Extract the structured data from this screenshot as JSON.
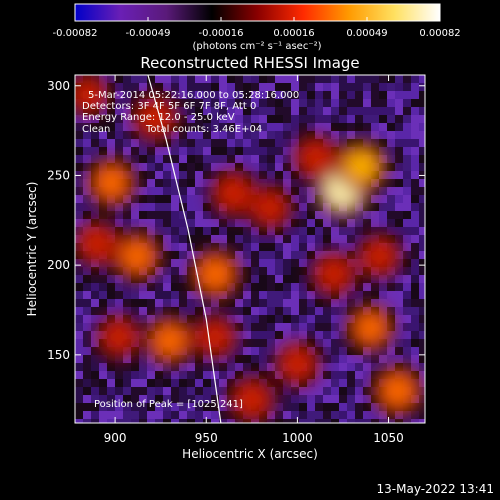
{
  "chart_data": {
    "type": "heatmap",
    "title": "Reconstructed RHESSI Image",
    "xlabel": "Heliocentric X (arcsec)",
    "ylabel": "Heliocentric Y (arcsec)",
    "xlim": [
      878,
      1070
    ],
    "ylim": [
      112,
      306
    ],
    "x_ticks": [
      "900",
      "950",
      "1000",
      "1050"
    ],
    "x_tick_values": [
      900,
      950,
      1000,
      1050
    ],
    "y_ticks": [
      "150",
      "200",
      "250",
      "300"
    ],
    "y_tick_values": [
      150,
      200,
      250,
      300
    ],
    "colorbar": {
      "range": [
        -0.00082,
        0.00082
      ],
      "tick_labels": [
        "-0.00082",
        "-0.00049",
        "-0.00016",
        "0.00016",
        "0.00049",
        "0.00082"
      ],
      "units_label": "(photons cm⁻² s⁻¹ asec⁻²)",
      "colors": [
        "#0000c8",
        "#6a1fb5",
        "#5a1a7a",
        "#000000",
        "#8a0000",
        "#ff2a00",
        "#ff9a00",
        "#ffe060",
        "#ffffff"
      ]
    },
    "annotations": {
      "time_range": "5-Mar-2014 05:22:16.000 to 05:28:16.000",
      "detectors": "Detectors: 3F 4F 5F 6F 7F 8F, Att 0",
      "energy_range": "Energy Range: 12.0 - 25.0 keV",
      "method": "Clean",
      "total_counts": "Total counts: 3.46E+04",
      "peak_position": "Position of Peak = [1025,241]"
    },
    "limb": [
      [
        918,
        306
      ],
      [
        928,
        270
      ],
      [
        940,
        220
      ],
      [
        950,
        170
      ],
      [
        958,
        112
      ]
    ],
    "hot_spots": [
      {
        "x": 1025,
        "y": 242,
        "intensity": 1.0
      },
      {
        "x": 1035,
        "y": 255,
        "intensity": 0.8
      },
      {
        "x": 1010,
        "y": 260,
        "intensity": 0.55
      },
      {
        "x": 898,
        "y": 246,
        "intensity": 0.7
      },
      {
        "x": 922,
        "y": 282,
        "intensity": 0.6
      },
      {
        "x": 890,
        "y": 212,
        "intensity": 0.55
      },
      {
        "x": 912,
        "y": 205,
        "intensity": 0.7
      },
      {
        "x": 955,
        "y": 195,
        "intensity": 0.75
      },
      {
        "x": 965,
        "y": 240,
        "intensity": 0.6
      },
      {
        "x": 985,
        "y": 232,
        "intensity": 0.5
      },
      {
        "x": 930,
        "y": 158,
        "intensity": 0.7
      },
      {
        "x": 902,
        "y": 160,
        "intensity": 0.5
      },
      {
        "x": 1020,
        "y": 195,
        "intensity": 0.55
      },
      {
        "x": 1045,
        "y": 205,
        "intensity": 0.5
      },
      {
        "x": 1040,
        "y": 165,
        "intensity": 0.65
      },
      {
        "x": 1055,
        "y": 130,
        "intensity": 0.75
      },
      {
        "x": 1000,
        "y": 145,
        "intensity": 0.55
      },
      {
        "x": 975,
        "y": 125,
        "intensity": 0.6
      },
      {
        "x": 955,
        "y": 160,
        "intensity": 0.5
      },
      {
        "x": 885,
        "y": 295,
        "intensity": 0.45
      }
    ],
    "grid": false
  },
  "footer": {
    "date": "13-May-2022 13:41"
  }
}
